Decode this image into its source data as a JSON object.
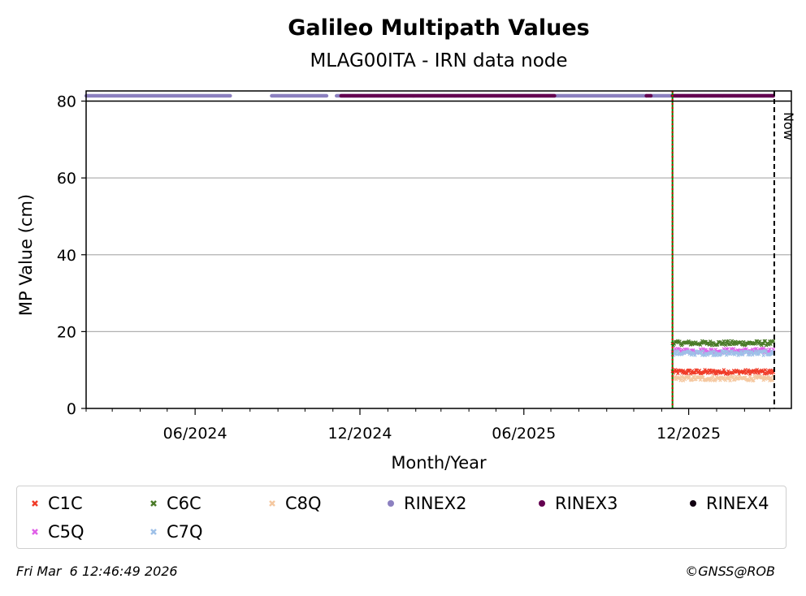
{
  "chart_data": {
    "type": "scatter",
    "title": "Galileo Multipath Values",
    "subtitle": "MLAG00ITA - IRN data node",
    "xlabel": "Month/Year",
    "ylabel": "MP Value (cm)",
    "ylim": [
      0,
      80
    ],
    "yticks": [
      0,
      20,
      40,
      60,
      80
    ],
    "xlim": [
      "2024-02-01",
      "2026-03-25"
    ],
    "xticks": [
      "06/2024",
      "12/2024",
      "06/2025",
      "12/2025"
    ],
    "grid": "horizontal",
    "legend_position": "bottom",
    "now_label": "Now",
    "now_date": "2026-03-06",
    "vlines": [
      {
        "date": "2025-11-13",
        "style": "solid",
        "color": "#008000"
      },
      {
        "date": "2025-11-13",
        "style": "dotted",
        "color": "#e00000"
      }
    ],
    "series": [
      {
        "name": "C1C",
        "marker": "x",
        "color": "#f03c28",
        "start": "2025-11-13",
        "end": "2026-03-05",
        "level": 9.5,
        "noise": 0.6
      },
      {
        "name": "C6C",
        "marker": "x",
        "color": "#4a7a28",
        "start": "2025-11-13",
        "end": "2026-03-05",
        "level": 17.0,
        "noise": 0.6
      },
      {
        "name": "C8Q",
        "marker": "x",
        "color": "#f5c8a0",
        "start": "2025-11-13",
        "end": "2026-03-05",
        "level": 7.8,
        "noise": 0.6
      },
      {
        "name": "C5Q",
        "marker": "x",
        "color": "#e060e8",
        "start": "2025-11-13",
        "end": "2026-03-05",
        "level": 15.0,
        "noise": 0.6
      },
      {
        "name": "C7Q",
        "marker": "x",
        "color": "#9ec0e8",
        "start": "2025-11-13",
        "end": "2026-03-05",
        "level": 14.4,
        "noise": 0.6
      },
      {
        "name": "RINEX2",
        "marker": "dot",
        "color": "#8c80c0",
        "y": 81.2,
        "segments": [
          [
            "2024-02-01",
            "2024-07-10"
          ],
          [
            "2024-08-25",
            "2024-10-25"
          ],
          [
            "2024-11-05",
            "2025-10-15"
          ],
          [
            "2025-10-20",
            "2026-03-05"
          ]
        ]
      },
      {
        "name": "RINEX3",
        "marker": "dot",
        "color": "#640050",
        "y": 81.2,
        "segments": [
          [
            "2024-11-10",
            "2025-07-05"
          ],
          [
            "2025-10-15",
            "2025-10-20"
          ],
          [
            "2025-11-13",
            "2026-03-05"
          ]
        ]
      },
      {
        "name": "RINEX4",
        "marker": "dot",
        "color": "#100010",
        "y": 81.2,
        "segments": []
      }
    ]
  },
  "footer": {
    "timestamp": "Fri Mar  6 12:46:49 2026",
    "copyright": "©GNSS@ROB"
  }
}
